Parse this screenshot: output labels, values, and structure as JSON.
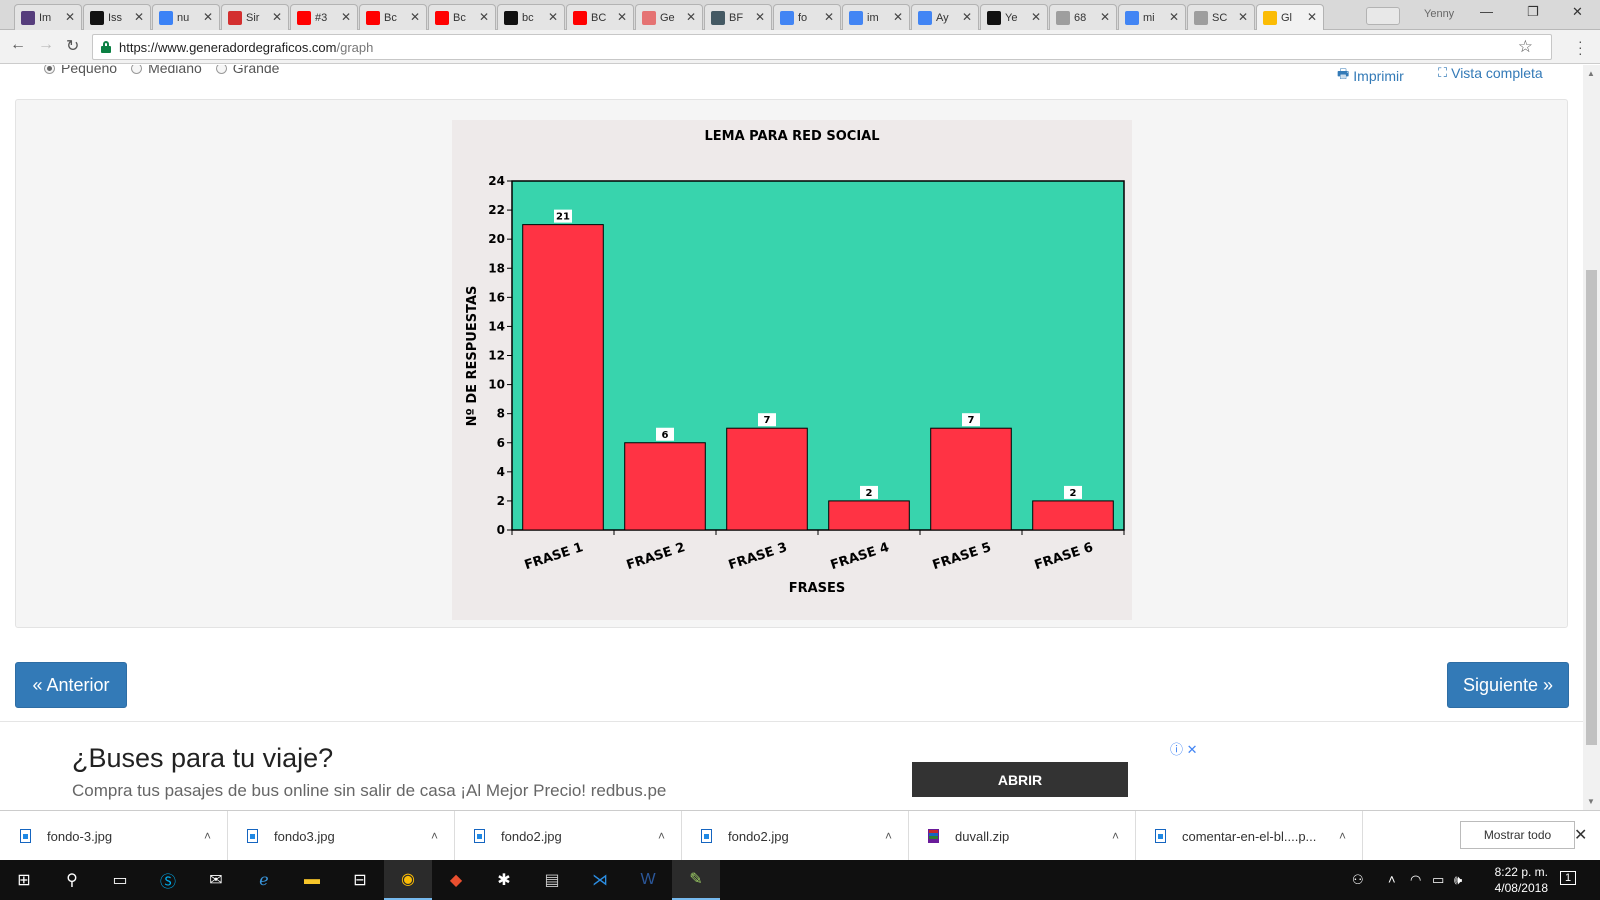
{
  "browser": {
    "tabs": [
      {
        "label": "Im",
        "favicon": "bootstrap-b",
        "color": "#563d7c"
      },
      {
        "label": "Iss",
        "favicon": "github-icon",
        "color": "#111111"
      },
      {
        "label": "nu",
        "favicon": "m-logo",
        "color": "#3b82f6"
      },
      {
        "label": "Sir",
        "favicon": "swiss-cross",
        "color": "#d32f2f"
      },
      {
        "label": "#3",
        "favicon": "youtube-icon",
        "color": "#ff0000"
      },
      {
        "label": "Bc",
        "favicon": "youtube-icon",
        "color": "#ff0000"
      },
      {
        "label": "Bc",
        "favicon": "youtube-icon",
        "color": "#ff0000"
      },
      {
        "label": "bc",
        "favicon": "github-icon",
        "color": "#111111"
      },
      {
        "label": "BC",
        "favicon": "youtube-icon",
        "color": "#ff0000"
      },
      {
        "label": "Ge",
        "favicon": "slash-logo",
        "color": "#e57373"
      },
      {
        "label": "BF",
        "favicon": "avatar-icon",
        "color": "#455a64"
      },
      {
        "label": "fo",
        "favicon": "google-icon",
        "color": "#4285f4"
      },
      {
        "label": "im",
        "favicon": "google-icon",
        "color": "#4285f4"
      },
      {
        "label": "Ay",
        "favicon": "google-icon",
        "color": "#4285f4"
      },
      {
        "label": "Ye",
        "favicon": "github-icon",
        "color": "#111111"
      },
      {
        "label": "68",
        "favicon": "page-icon",
        "color": "#9e9e9e"
      },
      {
        "label": "mi",
        "favicon": "google-icon",
        "color": "#4285f4"
      },
      {
        "label": "SC",
        "favicon": "page-icon",
        "color": "#9e9e9e"
      },
      {
        "label": "Gl",
        "favicon": "chrome-icon",
        "color": "#fbbc05"
      }
    ],
    "user": "Yenny",
    "url_host": "https://www.generadordegraficos.com",
    "url_path": "/graph"
  },
  "page": {
    "size_options": [
      {
        "label": "Pequeño",
        "selected": true
      },
      {
        "label": "Mediano",
        "selected": false
      },
      {
        "label": "Grande",
        "selected": false
      }
    ],
    "print_label": "Imprimir",
    "fullview_label": "Vista completa",
    "prev_label": "« Anterior",
    "next_label": "Siguiente »"
  },
  "chart_data": {
    "type": "bar",
    "title": "LEMA PARA RED SOCIAL",
    "xlabel": "FRASES",
    "ylabel": "Nº DE RESPUESTAS",
    "categories": [
      "FRASE 1",
      "FRASE 2",
      "FRASE 3",
      "FRASE 4",
      "FRASE 5",
      "FRASE 6"
    ],
    "values": [
      21,
      6,
      7,
      2,
      7,
      2
    ],
    "ylim": [
      0,
      24
    ],
    "yticks": [
      0,
      2,
      4,
      6,
      8,
      10,
      12,
      14,
      16,
      18,
      20,
      22,
      24
    ],
    "bar_color": "#ff3344",
    "plot_bg": "#38d4ad",
    "data_labels": true
  },
  "ad": {
    "title": "¿Buses para tu viaje?",
    "subtitle": "Compra tus pasajes de bus online sin salir de casa ¡Al Mejor Precio! redbus.pe",
    "button": "ABRIR"
  },
  "downloads": {
    "items": [
      {
        "name": "fondo-3.jpg",
        "type": "image"
      },
      {
        "name": "fondo3.jpg",
        "type": "image"
      },
      {
        "name": "fondo2.jpg",
        "type": "image"
      },
      {
        "name": "fondo2.jpg",
        "type": "image"
      },
      {
        "name": "duvall.zip",
        "type": "zip"
      },
      {
        "name": "comentar-en-el-bl....p...",
        "type": "image"
      }
    ],
    "show_all": "Mostrar todo"
  },
  "taskbar": {
    "time": "8:22 p. m.",
    "date": "4/08/2018",
    "notification_count": "1"
  }
}
